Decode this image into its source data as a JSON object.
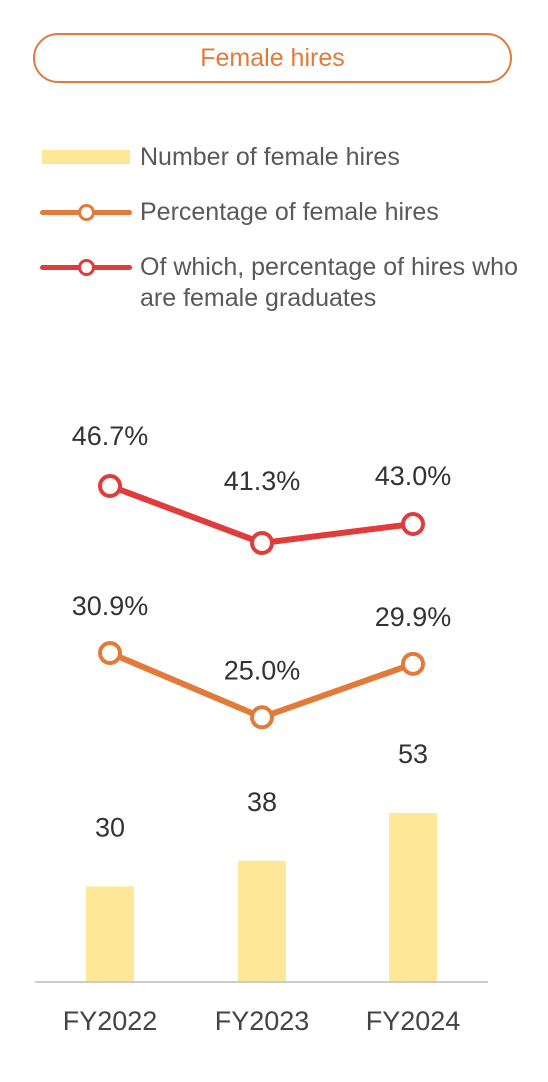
{
  "header": {
    "title": "Female hires"
  },
  "legend": [
    {
      "label": "Number of female hires",
      "kind": "bar",
      "color": "#fde89a"
    },
    {
      "label": "Percentage of female hires",
      "kind": "line",
      "color": "#e27a3a"
    },
    {
      "label": "Of which, percentage of hires who are female graduates",
      "kind": "line",
      "color": "#e03c3c"
    }
  ],
  "chart_data": {
    "type": "bar",
    "categories": [
      "FY2022",
      "FY2023",
      "FY2024"
    ],
    "series": [
      {
        "name": "Number of female hires",
        "type": "bar",
        "values": [
          30,
          38,
          53
        ],
        "labels": [
          "30",
          "38",
          "53"
        ],
        "color": "#fde89a"
      },
      {
        "name": "Percentage of female hires",
        "type": "line",
        "values": [
          30.9,
          25.0,
          29.9
        ],
        "labels": [
          "30.9%",
          "25.0%",
          "29.9%"
        ],
        "color": "#e27a3a"
      },
      {
        "name": "Of which, percentage of hires who are female graduates",
        "type": "line",
        "values": [
          46.7,
          41.3,
          43.0
        ],
        "labels": [
          "46.7%",
          "41.3%",
          "43.0%"
        ],
        "color": "#e03c3c"
      }
    ],
    "grid": false,
    "legend_position": "top"
  }
}
